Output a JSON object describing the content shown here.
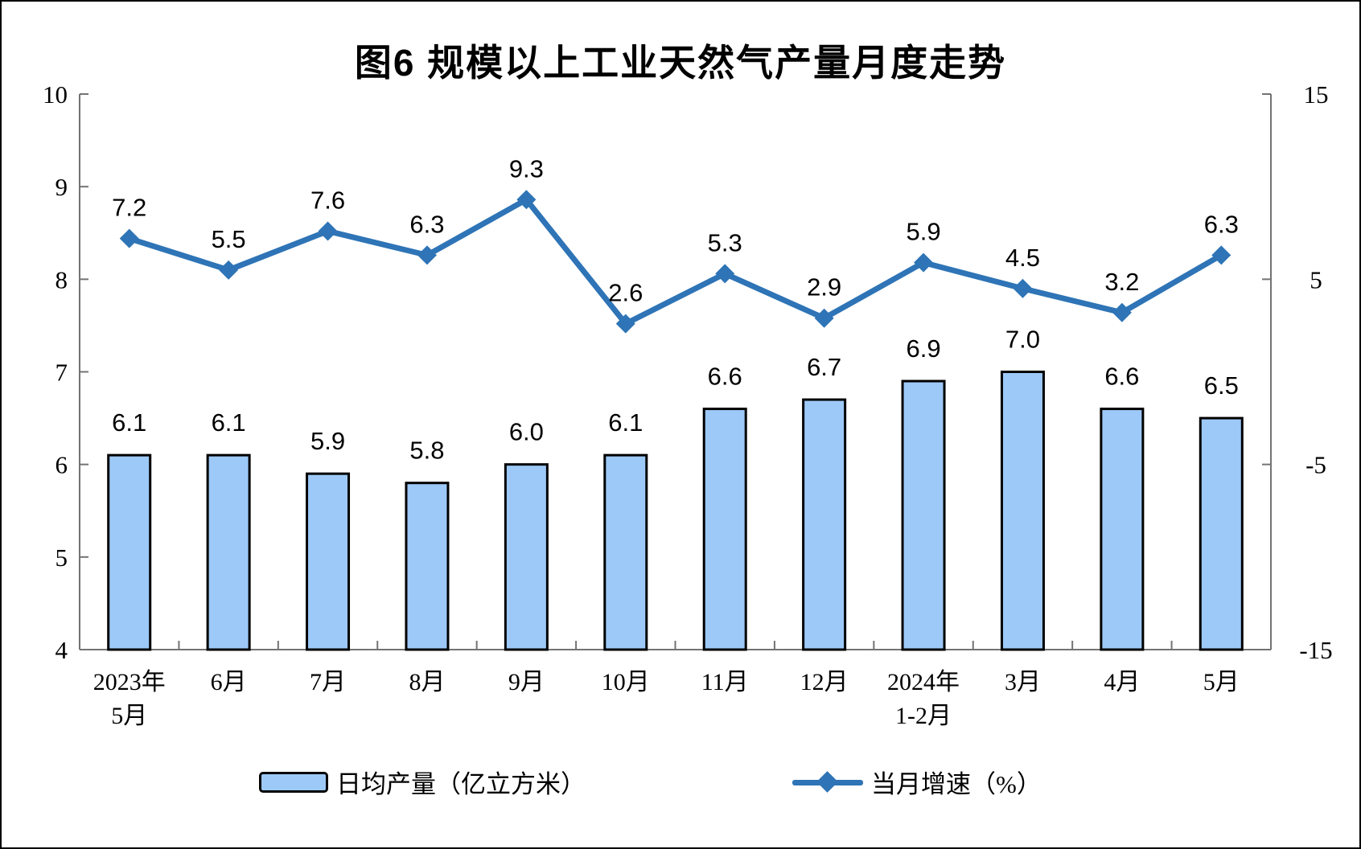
{
  "chart_data": {
    "type": "bar+line",
    "title": "图6 规模以上工业天然气产量月度走势",
    "categories": [
      "2023年\n5月",
      "6月",
      "7月",
      "8月",
      "9月",
      "10月",
      "11月",
      "12月",
      "2024年\n1-2月",
      "3月",
      "4月",
      "5月"
    ],
    "series": [
      {
        "name": "日均产量（亿立方米）",
        "type": "bar",
        "axis": "left",
        "values": [
          6.1,
          6.1,
          5.9,
          5.8,
          6.0,
          6.1,
          6.6,
          6.7,
          6.9,
          7.0,
          6.6,
          6.5
        ],
        "color": "#9DC9F8",
        "border_color": "#000000"
      },
      {
        "name": "当月增速（%）",
        "type": "line",
        "axis": "right",
        "values": [
          7.2,
          5.5,
          7.6,
          6.3,
          9.3,
          2.6,
          5.3,
          2.9,
          5.9,
          4.5,
          3.2,
          6.3
        ],
        "color": "#2E74B6",
        "marker": "diamond"
      }
    ],
    "left_axis": {
      "min": 4,
      "max": 10,
      "ticks": [
        4,
        5,
        6,
        7,
        8,
        9,
        10
      ]
    },
    "right_axis": {
      "min": -15,
      "max": 15,
      "ticks": [
        -15,
        -5,
        5,
        15
      ]
    },
    "axis_color": "#737373",
    "text_color": "#000000",
    "grid": false,
    "legend_position": "bottom",
    "data_labels": true
  }
}
